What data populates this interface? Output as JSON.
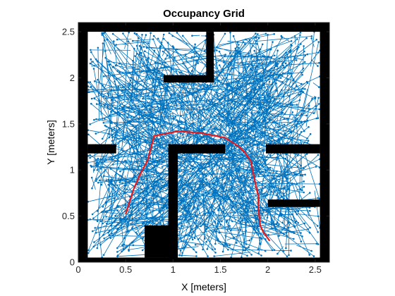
{
  "chart_data": {
    "type": "line",
    "title": "Occupancy Grid",
    "xlabel": "X [meters]",
    "ylabel": "Y [meters]",
    "xlim": [
      0,
      2.65
    ],
    "ylim": [
      0,
      2.6
    ],
    "xticks": [
      0,
      0.5,
      1,
      1.5,
      2,
      2.5
    ],
    "xtick_labels": [
      "0",
      "0.5",
      "1",
      "1.5",
      "2",
      "2.5"
    ],
    "yticks": [
      0,
      0.5,
      1,
      1.5,
      2,
      2.5
    ],
    "ytick_labels": [
      "0",
      "0.5",
      "1",
      "1.5",
      "2",
      "2.5"
    ],
    "grid": false,
    "legend": "none",
    "colors": {
      "tree": "#0072bd",
      "path": "#e41a1c",
      "obstacle": "#000000",
      "free": "#ffffff"
    },
    "obstacles": [
      {
        "x": [
          0.0,
          2.65
        ],
        "y": [
          2.5,
          2.6
        ]
      },
      {
        "x": [
          0.0,
          2.65
        ],
        "y": [
          0.0,
          0.05
        ]
      },
      {
        "x": [
          0.0,
          0.1
        ],
        "y": [
          0.0,
          2.6
        ]
      },
      {
        "x": [
          2.55,
          2.65
        ],
        "y": [
          0.0,
          2.6
        ]
      },
      {
        "x": [
          1.35,
          1.43
        ],
        "y": [
          1.95,
          2.5
        ]
      },
      {
        "x": [
          0.9,
          1.43
        ],
        "y": [
          1.95,
          2.03
        ]
      },
      {
        "x": [
          0.1,
          0.4
        ],
        "y": [
          1.18,
          1.28
        ]
      },
      {
        "x": [
          0.95,
          1.55
        ],
        "y": [
          1.18,
          1.28
        ]
      },
      {
        "x": [
          0.95,
          1.05
        ],
        "y": [
          0.05,
          1.28
        ]
      },
      {
        "x": [
          1.98,
          2.55
        ],
        "y": [
          1.18,
          1.28
        ]
      },
      {
        "x": [
          2.0,
          2.55
        ],
        "y": [
          0.6,
          0.68
        ]
      },
      {
        "x": [
          0.7,
          1.05
        ],
        "y": [
          0.05,
          0.4
        ]
      }
    ],
    "series": [
      {
        "type": "line",
        "x": [
          0.5,
          0.58,
          0.65,
          0.73,
          0.8,
          1.05,
          1.3,
          1.55,
          1.7,
          1.75,
          1.82,
          1.85,
          1.88,
          1.9,
          1.9,
          1.92,
          1.95,
          2.02
        ],
        "y": [
          0.52,
          0.78,
          0.95,
          1.1,
          1.37,
          1.42,
          1.4,
          1.35,
          1.25,
          1.2,
          1.1,
          0.95,
          0.8,
          0.72,
          0.6,
          0.4,
          0.33,
          0.23
        ]
      }
    ]
  }
}
